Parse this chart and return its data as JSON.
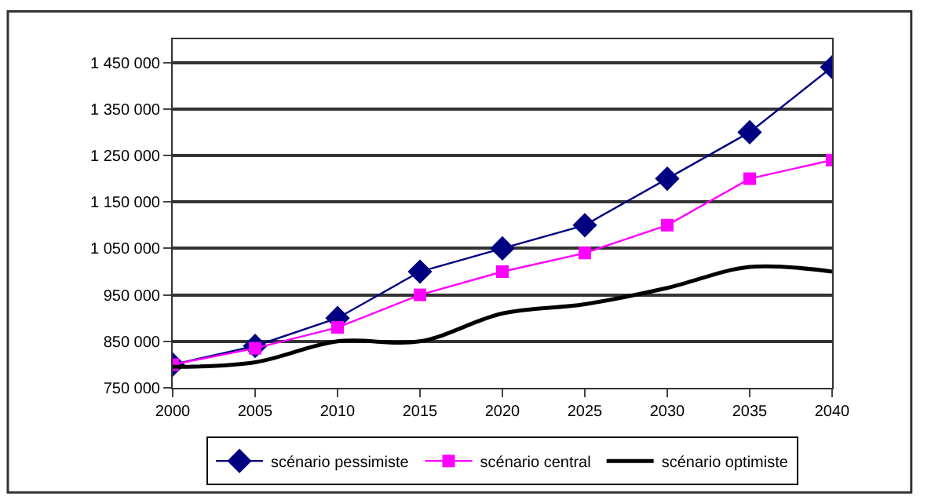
{
  "chart_data": {
    "type": "line",
    "x": [
      2000,
      2005,
      2010,
      2015,
      2020,
      2025,
      2030,
      2035,
      2040
    ],
    "xlim": [
      2000,
      2040
    ],
    "xticks": [
      2000,
      2005,
      2010,
      2015,
      2020,
      2025,
      2030,
      2035,
      2040
    ],
    "ylim": [
      750000,
      1500000
    ],
    "yticks": [
      {
        "value": 750000,
        "label": "750 000"
      },
      {
        "value": 850000,
        "label": "850 000"
      },
      {
        "value": 950000,
        "label": "950 000"
      },
      {
        "value": 1050000,
        "label": "1 050 000"
      },
      {
        "value": 1150000,
        "label": "1 150 000"
      },
      {
        "value": 1250000,
        "label": "1 250 000"
      },
      {
        "value": 1350000,
        "label": "1 350 000"
      },
      {
        "value": 1450000,
        "label": "1 450 000"
      }
    ],
    "grid": "y",
    "legend": "bottom",
    "series": [
      {
        "name": "scénario pessimiste",
        "color": "#000080",
        "marker": "diamond",
        "values": [
          800000,
          840000,
          900000,
          1000000,
          1050000,
          1100000,
          1200000,
          1300000,
          1440000
        ]
      },
      {
        "name": "scénario central",
        "color": "#ff00ff",
        "marker": "square",
        "values": [
          800000,
          835000,
          880000,
          950000,
          1000000,
          1040000,
          1100000,
          1200000,
          1240000
        ]
      },
      {
        "name": "scénario optimiste",
        "color": "#000000",
        "marker": "none",
        "values": [
          795000,
          805000,
          850000,
          850000,
          910000,
          930000,
          965000,
          1010000,
          1000000
        ]
      }
    ]
  }
}
